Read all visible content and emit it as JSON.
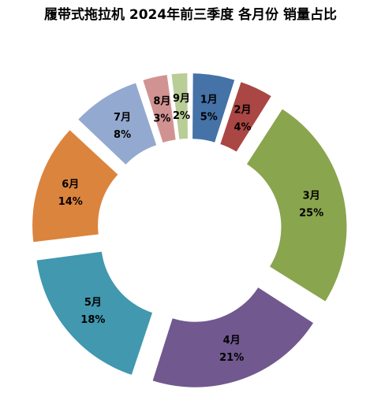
{
  "chart_data": {
    "type": "pie",
    "variant": "exploded-donut",
    "title": "履带式拖拉机  2024年前三季度  各月份  销量占比",
    "categories": [
      "1月",
      "2月",
      "3月",
      "4月",
      "5月",
      "6月",
      "7月",
      "8月",
      "9月"
    ],
    "values": [
      5,
      4,
      25,
      21,
      18,
      14,
      8,
      3,
      2
    ],
    "value_labels": [
      "5%",
      "4%",
      "25%",
      "21%",
      "18%",
      "14%",
      "8%",
      "3%",
      "2%"
    ],
    "unit": "%",
    "colors": [
      "#4572A7",
      "#AA4643",
      "#89A54E",
      "#71588F",
      "#4198AF",
      "#DB843D",
      "#93A9CF",
      "#D19392",
      "#B9CD96"
    ],
    "legend": "none"
  }
}
